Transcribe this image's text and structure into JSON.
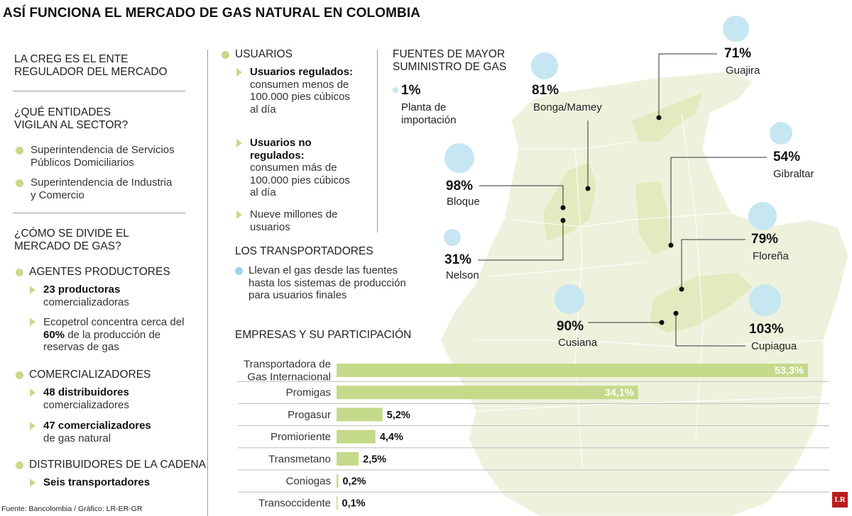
{
  "title": "ASÍ FUNCIONA EL MERCADO DE GAS NATURAL EN COLOMBIA",
  "left": {
    "creg_heading": "LA CREG ES EL ENTE REGULADOR DEL MERCADO",
    "vigilan_heading": "¿QUÉ ENTIDADES VIGILAN AL SECTOR?",
    "vigilan_items": [
      "Superintendencia de Servicios Públicos Domiciliarios",
      "Superintendencia de Industria y Comercio"
    ],
    "divide_heading": "¿CÓMO SE DIVIDE EL MERCADO DE GAS?",
    "agentes_heading": "AGENTES PRODUCTORES",
    "agentes_item1_bold": "23 productoras",
    "agentes_item1_rest": "comercializadoras",
    "agentes_item2_pre": "Ecopetrol concentra cerca del ",
    "agentes_item2_bold": "60%",
    "agentes_item2_post": " de la producción de reservas de gas",
    "comerc_heading": "COMERCIALIZADORES",
    "comerc_item1_bold": "48 distribuidores",
    "comerc_item1_rest": "comercializadores",
    "comerc_item2_bold": "47 comercializadores",
    "comerc_item2_rest": "de gas natural",
    "distrib_heading": "DISTRIBUIDORES DE LA CADENA",
    "distrib_item1_bold": "Seis transportadores"
  },
  "middle": {
    "usuarios_heading": "USUARIOS",
    "reg_bold": "Usuarios regulados:",
    "reg_rest": "consumen menos de 100.000 pies cúbicos al día",
    "noreg_bold": "Usuarios no regulados:",
    "noreg_rest": "consumen más de 100.000 pies cúbicos al día",
    "nueve": "Nueve millones de usuarios",
    "transp_heading": "LOS TRANSPORTADORES",
    "transp_text": "Llevan el gas desde las fuentes hasta los sistemas de producción para usuarios finales"
  },
  "map": {
    "heading": "FUENTES DE MAYOR SUMINISTRO DE GAS",
    "sources": [
      {
        "pct": "1%",
        "name": "Planta de importación"
      },
      {
        "pct": "81%",
        "name": "Bonga/Mamey"
      },
      {
        "pct": "71%",
        "name": "Guajira"
      },
      {
        "pct": "54%",
        "name": "Gibraltar"
      },
      {
        "pct": "98%",
        "name": "Bloque"
      },
      {
        "pct": "31%",
        "name": "Nelson"
      },
      {
        "pct": "79%",
        "name": "Floreña"
      },
      {
        "pct": "90%",
        "name": "Cusiana"
      },
      {
        "pct": "103%",
        "name": "Cupiagua"
      }
    ]
  },
  "chart_data": {
    "type": "bar",
    "title": "EMPRESAS Y SU PARTICIPACIÓN",
    "categories": [
      "Transportadora de Gas Internacional",
      "Promigas",
      "Progasur",
      "Promioriente",
      "Transmetano",
      "Coniogas",
      "Transoccidente"
    ],
    "values": [
      53.3,
      34.1,
      5.2,
      4.4,
      2.5,
      0.2,
      0.1
    ],
    "value_labels": [
      "53,3%",
      "34,1%",
      "5,2%",
      "4,4%",
      "2,5%",
      "0,2%",
      "0,1%"
    ],
    "bar_color": "#c5d98a",
    "xlim": [
      0,
      53.3
    ]
  },
  "footer": "Fuente: Bancolombia / Gráfico: LR-ER-GR",
  "logo": "LR",
  "colors": {
    "green": "#c8d98a",
    "blue": "#c6e6f1",
    "map": "#eef2dd",
    "map_highlight": "#e3eabf"
  }
}
